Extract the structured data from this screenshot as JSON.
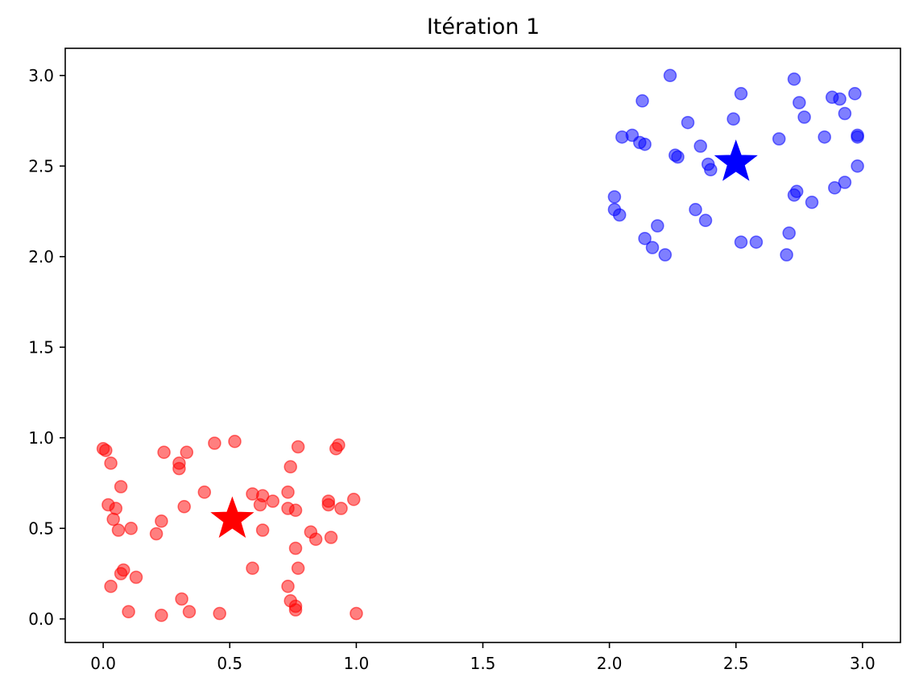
{
  "chart_data": {
    "type": "scatter",
    "title": "Itération 1",
    "xlabel": "",
    "ylabel": "",
    "xlim": [
      -0.15,
      3.15
    ],
    "ylim": [
      -0.13,
      3.15
    ],
    "xticks": [
      0.0,
      0.5,
      1.0,
      1.5,
      2.0,
      2.5,
      3.0
    ],
    "yticks": [
      0.0,
      0.5,
      1.0,
      1.5,
      2.0,
      2.5,
      3.0
    ],
    "xtick_labels": [
      "0.0",
      "0.5",
      "1.0",
      "1.5",
      "2.0",
      "2.5",
      "3.0"
    ],
    "ytick_labels": [
      "0.0",
      "0.5",
      "1.0",
      "1.5",
      "2.0",
      "2.5",
      "3.0"
    ],
    "grid": false,
    "series": [
      {
        "color": "#ff0000",
        "points": [
          [
            0.0,
            0.94
          ],
          [
            0.01,
            0.93
          ],
          [
            0.03,
            0.86
          ],
          [
            0.07,
            0.73
          ],
          [
            0.02,
            0.63
          ],
          [
            0.05,
            0.61
          ],
          [
            0.04,
            0.55
          ],
          [
            0.06,
            0.49
          ],
          [
            0.11,
            0.5
          ],
          [
            0.07,
            0.25
          ],
          [
            0.08,
            0.27
          ],
          [
            0.13,
            0.23
          ],
          [
            0.03,
            0.18
          ],
          [
            0.1,
            0.04
          ],
          [
            0.24,
            0.92
          ],
          [
            0.3,
            0.86
          ],
          [
            0.3,
            0.83
          ],
          [
            0.33,
            0.92
          ],
          [
            0.44,
            0.97
          ],
          [
            0.52,
            0.98
          ],
          [
            0.23,
            0.54
          ],
          [
            0.21,
            0.47
          ],
          [
            0.32,
            0.62
          ],
          [
            0.4,
            0.7
          ],
          [
            0.31,
            0.11
          ],
          [
            0.23,
            0.02
          ],
          [
            0.34,
            0.04
          ],
          [
            0.46,
            0.03
          ],
          [
            0.59,
            0.69
          ],
          [
            0.63,
            0.68
          ],
          [
            0.62,
            0.63
          ],
          [
            0.67,
            0.65
          ],
          [
            0.63,
            0.49
          ],
          [
            0.59,
            0.28
          ],
          [
            0.73,
            0.7
          ],
          [
            0.74,
            0.84
          ],
          [
            0.77,
            0.95
          ],
          [
            0.73,
            0.61
          ],
          [
            0.76,
            0.6
          ],
          [
            0.76,
            0.39
          ],
          [
            0.77,
            0.28
          ],
          [
            0.73,
            0.18
          ],
          [
            0.74,
            0.1
          ],
          [
            0.76,
            0.07
          ],
          [
            0.76,
            0.05
          ],
          [
            0.82,
            0.48
          ],
          [
            0.84,
            0.44
          ],
          [
            0.89,
            0.65
          ],
          [
            0.89,
            0.63
          ],
          [
            0.9,
            0.45
          ],
          [
            0.92,
            0.94
          ],
          [
            0.93,
            0.96
          ],
          [
            0.94,
            0.61
          ],
          [
            0.99,
            0.66
          ],
          [
            1.0,
            0.03
          ]
        ]
      },
      {
        "color": "#0000ff",
        "points": [
          [
            2.02,
            2.33
          ],
          [
            2.02,
            2.26
          ],
          [
            2.04,
            2.23
          ],
          [
            2.05,
            2.66
          ],
          [
            2.09,
            2.67
          ],
          [
            2.12,
            2.63
          ],
          [
            2.13,
            2.86
          ],
          [
            2.14,
            2.62
          ],
          [
            2.14,
            2.1
          ],
          [
            2.17,
            2.05
          ],
          [
            2.19,
            2.17
          ],
          [
            2.22,
            2.01
          ],
          [
            2.24,
            3.0
          ],
          [
            2.26,
            2.56
          ],
          [
            2.27,
            2.55
          ],
          [
            2.31,
            2.74
          ],
          [
            2.34,
            2.26
          ],
          [
            2.36,
            2.61
          ],
          [
            2.38,
            2.2
          ],
          [
            2.39,
            2.51
          ],
          [
            2.4,
            2.48
          ],
          [
            2.49,
            2.76
          ],
          [
            2.52,
            2.9
          ],
          [
            2.52,
            2.08
          ],
          [
            2.58,
            2.08
          ],
          [
            2.67,
            2.65
          ],
          [
            2.7,
            2.01
          ],
          [
            2.71,
            2.13
          ],
          [
            2.73,
            2.98
          ],
          [
            2.73,
            2.34
          ],
          [
            2.74,
            2.36
          ],
          [
            2.75,
            2.85
          ],
          [
            2.77,
            2.77
          ],
          [
            2.8,
            2.3
          ],
          [
            2.85,
            2.66
          ],
          [
            2.88,
            2.88
          ],
          [
            2.89,
            2.38
          ],
          [
            2.91,
            2.87
          ],
          [
            2.93,
            2.79
          ],
          [
            2.93,
            2.41
          ],
          [
            2.97,
            2.9
          ],
          [
            2.98,
            2.67
          ],
          [
            2.98,
            2.66
          ],
          [
            2.98,
            2.5
          ]
        ]
      }
    ],
    "centroids": [
      {
        "x": 0.51,
        "y": 0.55,
        "color": "#ff0000"
      },
      {
        "x": 2.5,
        "y": 2.52,
        "color": "#0000ff"
      }
    ]
  }
}
